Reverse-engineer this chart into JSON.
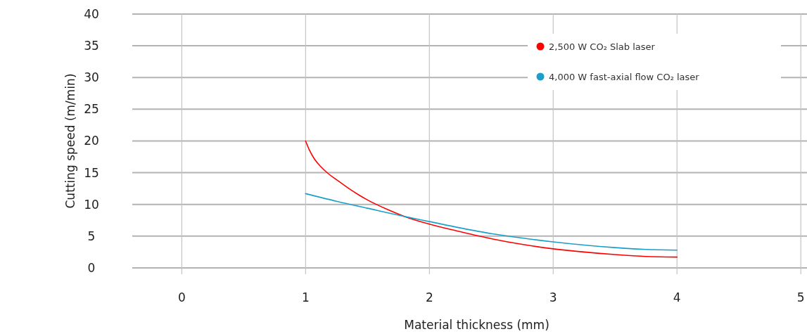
{
  "chart_data": {
    "type": "line",
    "xlabel": "Material thickness (mm)",
    "ylabel": "Cutting speed (m/min)",
    "xlim": [
      -0.4,
      5.05
    ],
    "ylim": [
      -1,
      40
    ],
    "xticks": [
      0,
      1,
      2,
      3,
      4,
      5
    ],
    "yticks": [
      0,
      5,
      10,
      15,
      20,
      25,
      30,
      35,
      40
    ],
    "grid": true,
    "legend": "top right",
    "marker": "none",
    "line_style": "solid",
    "series": [
      {
        "name": "2,500 W CO₂ Slab laser",
        "color": "#ff0000",
        "x": [
          1,
          1.03,
          1.07,
          1.12,
          1.18,
          1.25,
          1.35,
          1.5,
          1.65,
          1.8,
          2,
          2.25,
          2.5,
          2.75,
          3,
          3.25,
          3.5,
          3.75,
          4
        ],
        "values": [
          20,
          18.6,
          17.2,
          16,
          14.9,
          13.9,
          12.5,
          10.7,
          9.3,
          8.1,
          6.9,
          5.7,
          4.6,
          3.7,
          3,
          2.5,
          2.1,
          1.8,
          1.7
        ]
      },
      {
        "name": "4,000 W fast-axial flow CO₂ laser",
        "color": "#1a9fc8",
        "x": [
          1,
          1.25,
          1.5,
          1.8,
          2,
          2.25,
          2.5,
          2.75,
          3,
          3.25,
          3.5,
          3.75,
          4
        ],
        "values": [
          11.7,
          10.5,
          9.4,
          8.1,
          7.3,
          6.3,
          5.4,
          4.7,
          4.1,
          3.6,
          3.2,
          2.9,
          2.8
        ]
      }
    ]
  }
}
